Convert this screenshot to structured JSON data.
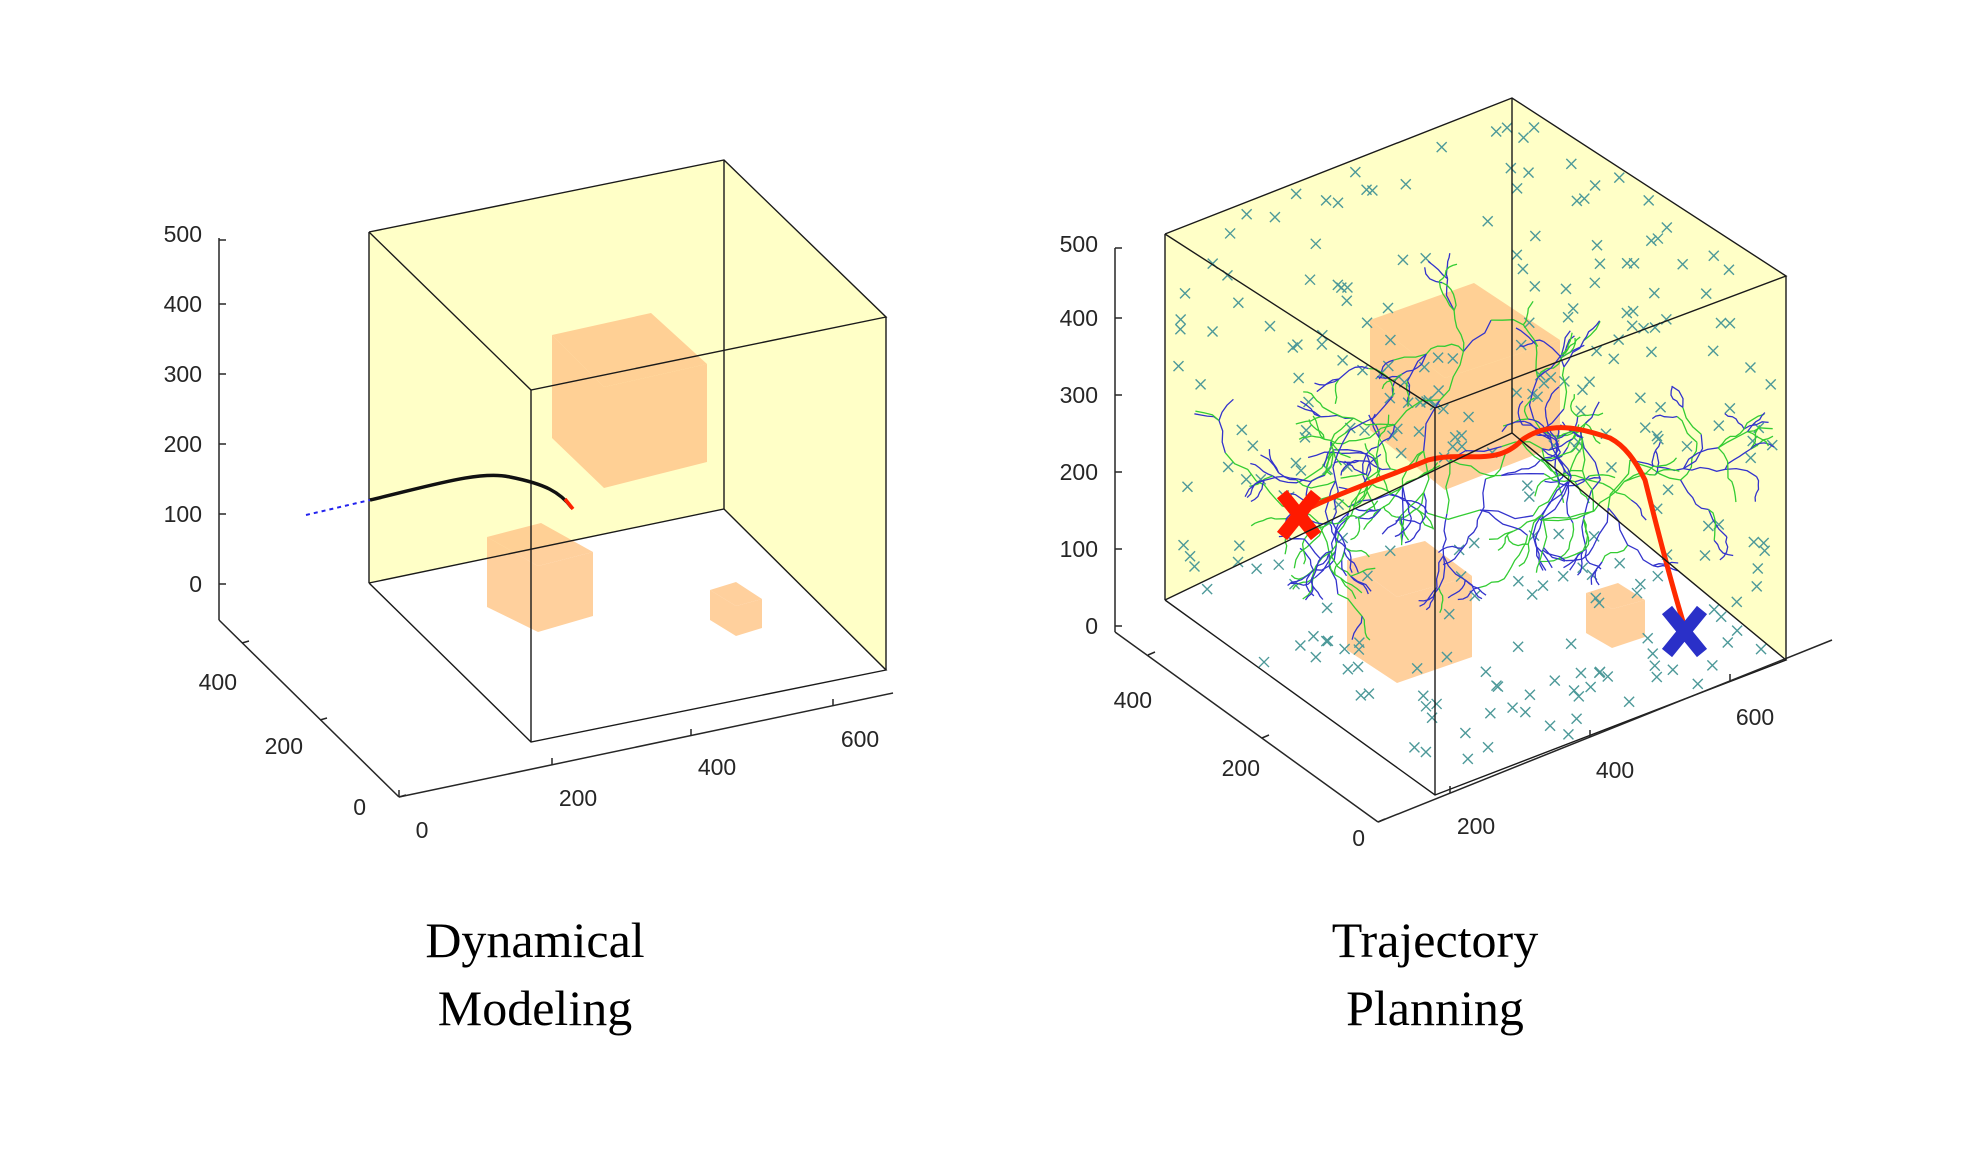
{
  "colors": {
    "box_fill": "#ffff99",
    "box_alpha": 0.55,
    "obstacle": "#ffc88c",
    "axis": "#262626",
    "tree_green": "#33cc33",
    "tree_blue": "#3333cc",
    "sample_marker": "#4d9999",
    "path_red": "#ff2a00",
    "start_marker": "#ff1a00",
    "goal_marker": "#2a30c8"
  },
  "chart_data": [
    {
      "type": "3d-scatter-line",
      "caption": [
        "Dynamical",
        "Modeling"
      ],
      "x_ticks": [
        "0",
        "200",
        "400",
        "600"
      ],
      "y_ticks": [
        "0",
        "200",
        "400"
      ],
      "z_ticks": [
        "0",
        "100",
        "200",
        "300",
        "400",
        "500"
      ],
      "series": [
        {
          "role": "approach",
          "color": "blue",
          "style": "dotted"
        },
        {
          "role": "trajectory",
          "color": "black",
          "style": "solid"
        },
        {
          "role": "endpoint",
          "color": "red",
          "style": "solid"
        }
      ]
    },
    {
      "type": "3d-scatter-line",
      "caption": [
        "Trajectory",
        "Planning"
      ],
      "x_ticks": [
        "200",
        "400",
        "600"
      ],
      "y_ticks": [
        "0",
        "200",
        "400"
      ],
      "z_ticks": [
        "0",
        "100",
        "200",
        "300",
        "400",
        "500"
      ],
      "series": [
        {
          "role": "samples",
          "marker": "x",
          "color": "teal"
        },
        {
          "role": "tree",
          "color": "green/blue"
        },
        {
          "role": "path",
          "color": "red"
        },
        {
          "role": "start",
          "marker": "X",
          "color": "red"
        },
        {
          "role": "goal",
          "marker": "X",
          "color": "blue"
        }
      ]
    }
  ]
}
